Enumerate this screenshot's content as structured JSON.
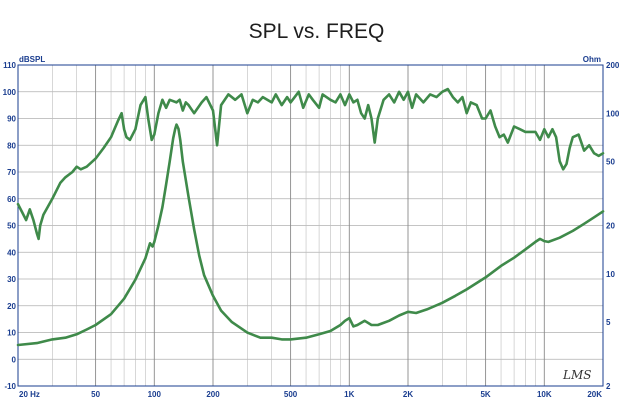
{
  "chart_data": {
    "type": "line",
    "title": "SPL vs. FREQ",
    "y_left_unit": "dBSPL",
    "y_right_unit": "Ohm",
    "x_scale": "log",
    "xlim": [
      20,
      20000
    ],
    "ylim_left": [
      -10,
      110
    ],
    "ylim_right_log": [
      2,
      200
    ],
    "grid": true,
    "x_ticks": [
      {
        "value": 20,
        "label": "20 Hz"
      },
      {
        "value": 50,
        "label": "50"
      },
      {
        "value": 100,
        "label": "100"
      },
      {
        "value": 200,
        "label": "200"
      },
      {
        "value": 500,
        "label": "500"
      },
      {
        "value": 1000,
        "label": "1K"
      },
      {
        "value": 2000,
        "label": "2K"
      },
      {
        "value": 5000,
        "label": "5K"
      },
      {
        "value": 10000,
        "label": "10K"
      },
      {
        "value": 20000,
        "label": "20K"
      }
    ],
    "y_left_ticks": [
      "110",
      "100",
      "90",
      "80",
      "70",
      "60",
      "50",
      "40",
      "30",
      "20",
      "10",
      "0",
      "-10"
    ],
    "y_right_ticks": [
      {
        "value": 200,
        "label": "200"
      },
      {
        "value": 100,
        "label": "100"
      },
      {
        "value": 50,
        "label": "50"
      },
      {
        "value": 20,
        "label": "20"
      },
      {
        "value": 10,
        "label": "10"
      },
      {
        "value": 5,
        "label": "5"
      },
      {
        "value": 2,
        "label": "2"
      }
    ],
    "series": [
      {
        "axis": "left",
        "color": "#3f8a4a",
        "points": [
          [
            20,
            58
          ],
          [
            21,
            55
          ],
          [
            22,
            52
          ],
          [
            23,
            56
          ],
          [
            24,
            52
          ],
          [
            25,
            47
          ],
          [
            25.5,
            45
          ],
          [
            26,
            50
          ],
          [
            27,
            54
          ],
          [
            30,
            60
          ],
          [
            33,
            66
          ],
          [
            35,
            68
          ],
          [
            38,
            70
          ],
          [
            40,
            72
          ],
          [
            42,
            71
          ],
          [
            45,
            72
          ],
          [
            50,
            75
          ],
          [
            55,
            79
          ],
          [
            60,
            83
          ],
          [
            65,
            89
          ],
          [
            68,
            92
          ],
          [
            70,
            86
          ],
          [
            72,
            83
          ],
          [
            75,
            82
          ],
          [
            80,
            86
          ],
          [
            85,
            95
          ],
          [
            90,
            98
          ],
          [
            93,
            90
          ],
          [
            97,
            82
          ],
          [
            100,
            84
          ],
          [
            105,
            92
          ],
          [
            110,
            97
          ],
          [
            115,
            94
          ],
          [
            120,
            97
          ],
          [
            130,
            96
          ],
          [
            135,
            97
          ],
          [
            140,
            93
          ],
          [
            145,
            96
          ],
          [
            150,
            95
          ],
          [
            160,
            92
          ],
          [
            175,
            96
          ],
          [
            185,
            98
          ],
          [
            200,
            93
          ],
          [
            210,
            80
          ],
          [
            220,
            95
          ],
          [
            240,
            99
          ],
          [
            260,
            97
          ],
          [
            280,
            99
          ],
          [
            300,
            92
          ],
          [
            320,
            97
          ],
          [
            340,
            96
          ],
          [
            360,
            98
          ],
          [
            400,
            96
          ],
          [
            420,
            99
          ],
          [
            450,
            95
          ],
          [
            480,
            98
          ],
          [
            500,
            96
          ],
          [
            550,
            100
          ],
          [
            580,
            94
          ],
          [
            620,
            99
          ],
          [
            650,
            97
          ],
          [
            700,
            94
          ],
          [
            730,
            99
          ],
          [
            800,
            97
          ],
          [
            850,
            96
          ],
          [
            900,
            99
          ],
          [
            950,
            95
          ],
          [
            1000,
            99
          ],
          [
            1050,
            96
          ],
          [
            1100,
            97
          ],
          [
            1150,
            92
          ],
          [
            1200,
            90
          ],
          [
            1250,
            95
          ],
          [
            1300,
            90
          ],
          [
            1350,
            81
          ],
          [
            1400,
            90
          ],
          [
            1500,
            97
          ],
          [
            1600,
            99
          ],
          [
            1700,
            96
          ],
          [
            1800,
            100
          ],
          [
            1900,
            97
          ],
          [
            2000,
            100
          ],
          [
            2100,
            94
          ],
          [
            2200,
            99
          ],
          [
            2400,
            96
          ],
          [
            2600,
            99
          ],
          [
            2800,
            98
          ],
          [
            3000,
            100
          ],
          [
            3200,
            101
          ],
          [
            3400,
            98
          ],
          [
            3600,
            96
          ],
          [
            3800,
            98
          ],
          [
            4000,
            92
          ],
          [
            4200,
            96
          ],
          [
            4500,
            95
          ],
          [
            4800,
            90
          ],
          [
            5000,
            90
          ],
          [
            5300,
            93
          ],
          [
            5600,
            87
          ],
          [
            5900,
            83
          ],
          [
            6200,
            84
          ],
          [
            6500,
            81
          ],
          [
            7000,
            87
          ],
          [
            7500,
            86
          ],
          [
            8000,
            85
          ],
          [
            8500,
            85
          ],
          [
            9000,
            85
          ],
          [
            9500,
            82
          ],
          [
            10000,
            86
          ],
          [
            10500,
            83
          ],
          [
            11000,
            86
          ],
          [
            11500,
            83
          ],
          [
            12000,
            74
          ],
          [
            12500,
            71
          ],
          [
            13000,
            73
          ],
          [
            13500,
            79
          ],
          [
            14000,
            83
          ],
          [
            15000,
            84
          ],
          [
            16000,
            78
          ],
          [
            17000,
            80
          ],
          [
            18000,
            77
          ],
          [
            19000,
            76
          ],
          [
            20000,
            77
          ]
        ]
      },
      {
        "axis": "right",
        "color": "#3f8a4a",
        "points": [
          [
            20,
            3.6
          ],
          [
            25,
            3.7
          ],
          [
            30,
            3.9
          ],
          [
            35,
            4.0
          ],
          [
            40,
            4.2
          ],
          [
            45,
            4.5
          ],
          [
            50,
            4.8
          ],
          [
            60,
            5.6
          ],
          [
            70,
            7.0
          ],
          [
            80,
            9.2
          ],
          [
            90,
            12.5
          ],
          [
            95,
            15.5
          ],
          [
            98,
            14.8
          ],
          [
            100,
            15.8
          ],
          [
            105,
            20
          ],
          [
            110,
            26
          ],
          [
            115,
            36
          ],
          [
            120,
            50
          ],
          [
            125,
            70
          ],
          [
            128,
            80
          ],
          [
            130,
            85
          ],
          [
            133,
            80
          ],
          [
            136,
            68
          ],
          [
            140,
            50
          ],
          [
            150,
            30
          ],
          [
            160,
            19
          ],
          [
            170,
            13
          ],
          [
            180,
            9.8
          ],
          [
            200,
            7.3
          ],
          [
            220,
            5.9
          ],
          [
            250,
            5.0
          ],
          [
            300,
            4.3
          ],
          [
            350,
            4.0
          ],
          [
            400,
            4.0
          ],
          [
            450,
            3.9
          ],
          [
            500,
            3.9
          ],
          [
            600,
            4.0
          ],
          [
            700,
            4.2
          ],
          [
            800,
            4.4
          ],
          [
            900,
            4.8
          ],
          [
            950,
            5.1
          ],
          [
            1000,
            5.3
          ],
          [
            1050,
            4.7
          ],
          [
            1100,
            4.8
          ],
          [
            1200,
            5.1
          ],
          [
            1300,
            4.8
          ],
          [
            1400,
            4.8
          ],
          [
            1600,
            5.1
          ],
          [
            1800,
            5.5
          ],
          [
            2000,
            5.8
          ],
          [
            2200,
            5.7
          ],
          [
            2500,
            6.0
          ],
          [
            3000,
            6.6
          ],
          [
            3500,
            7.3
          ],
          [
            4000,
            8.0
          ],
          [
            5000,
            9.5
          ],
          [
            6000,
            11.2
          ],
          [
            7000,
            12.6
          ],
          [
            8000,
            14.2
          ],
          [
            9000,
            15.8
          ],
          [
            9500,
            16.5
          ],
          [
            10000,
            16.0
          ],
          [
            10500,
            15.8
          ],
          [
            12000,
            16.8
          ],
          [
            14000,
            18.5
          ],
          [
            16000,
            20.5
          ],
          [
            18000,
            22.5
          ],
          [
            20000,
            24.5
          ]
        ]
      }
    ],
    "annotation": "LMS"
  }
}
